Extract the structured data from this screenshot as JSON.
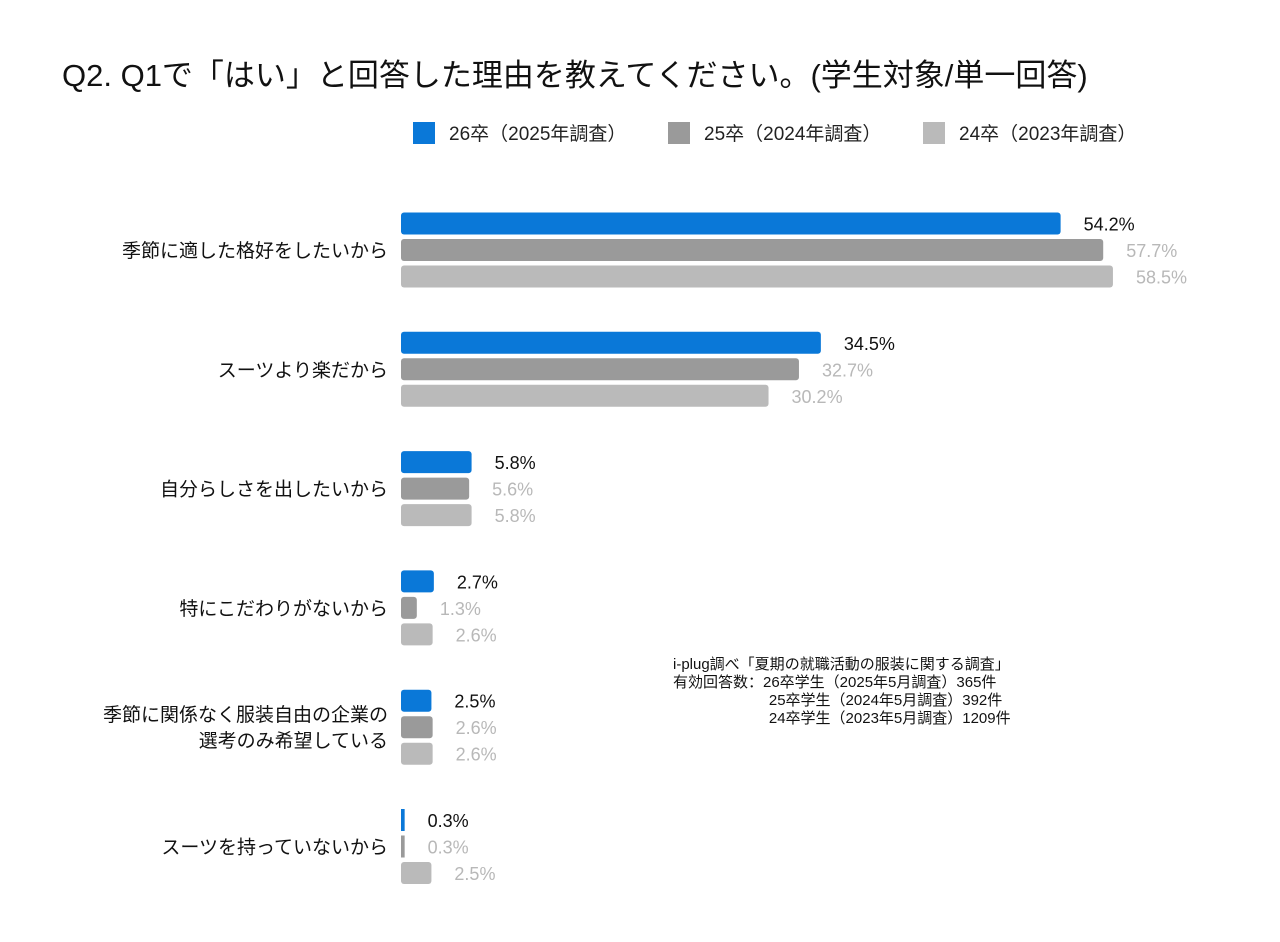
{
  "title": "Q2. Q1で「はい」と回答した理由を教えてください。(学生対象/単一回答)",
  "note": {
    "line1": "i-plug調べ「夏期の就職活動の服装に関する調査」",
    "line2": "有効回答数：26卒学生（2025年5月調査）365件",
    "line3": "                       25卒学生（2024年5月調査）392件",
    "line4": "                       24卒学生（2023年5月調査）1209件"
  },
  "chart_data": {
    "type": "bar",
    "orientation": "horizontal",
    "title": "Q2. Q1で「はい」と回答した理由を教えてください。(学生対象/単一回答)",
    "legend_position": "top",
    "grid": false,
    "unit": "%",
    "categories": [
      "季節に適した格好をしたいから",
      "スーツより楽だから",
      "自分らしさを出したいから",
      "特にこだわりがないから",
      "季節に関係なく服装自由の企業の\n選考のみ希望している",
      "スーツを持っていないから"
    ],
    "series": [
      {
        "name": "26卒（2025年調査）",
        "color": "#0a78d8",
        "label_color": "#111111",
        "values": [
          54.2,
          34.5,
          5.8,
          2.7,
          2.5,
          0.3
        ]
      },
      {
        "name": "25卒（2024年調査）",
        "color": "#9a9a9a",
        "label_color": "#b8b8b8",
        "values": [
          57.7,
          32.7,
          5.6,
          1.3,
          2.6,
          0.3
        ]
      },
      {
        "name": "24卒（2023年調査）",
        "color": "#bababa",
        "label_color": "#b8b8b8",
        "values": [
          58.5,
          30.2,
          5.8,
          2.6,
          2.6,
          2.5
        ]
      }
    ]
  }
}
